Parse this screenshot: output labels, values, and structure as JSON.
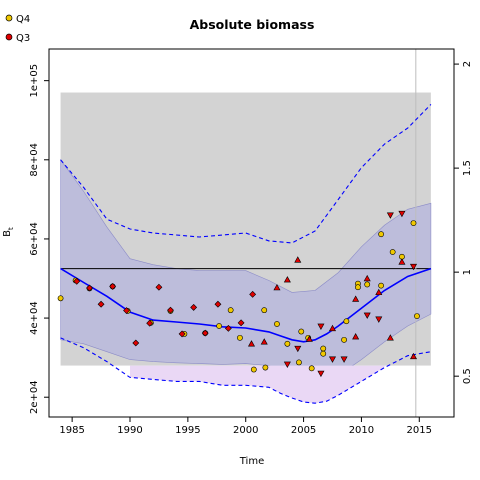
{
  "chart_data": {
    "type": "scatter",
    "title": "Absolute biomass",
    "xlabel": "Time",
    "ylabel": "B",
    "ylabel_subscript": "t",
    "xlim": [
      1983,
      2018
    ],
    "ylim": [
      15000,
      108000
    ],
    "y2lim": [
      0.3038,
      2.0725
    ],
    "x_ticks": [
      1985,
      1990,
      1995,
      2000,
      2005,
      2010,
      2015
    ],
    "y_ticks": [
      20000,
      40000,
      60000,
      80000,
      100000
    ],
    "y_tick_labels": [
      "2e+04",
      "4e+04",
      "6e+04",
      "8e+04",
      "1e+05"
    ],
    "y2_ticks": [
      0.5,
      1,
      1.5,
      2
    ],
    "y2_tick_labels": [
      "0.5",
      "1",
      "1.5",
      "2"
    ],
    "legend_placement": "top-left",
    "grid": false,
    "colors": {
      "Q4": "#f0c800",
      "Q3": "#e00000",
      "ci_band": "#b8b8dc",
      "ci_lower_band": "#ead8f5",
      "bmsy_box": "#d3d3d3",
      "line": "#0000ff"
    },
    "bmsy_line": 52500,
    "bmsy_box": {
      "x": [
        1984,
        2016
      ],
      "y": [
        28000,
        97000
      ]
    },
    "marker_legend": [
      {
        "name": "Q4",
        "color": "#f0c800"
      },
      {
        "name": "Q3",
        "color": "#e00000"
      }
    ],
    "vertical_line_x": 2014.7,
    "estimate": {
      "x": [
        1984,
        1986,
        1988,
        1990,
        1992,
        1994,
        1996,
        1998,
        2000,
        2002,
        2003,
        2004,
        2005,
        2006,
        2007,
        2008,
        2010,
        2012,
        2014,
        2016
      ],
      "y": [
        52500,
        49000,
        45500,
        41500,
        39500,
        39000,
        38500,
        37800,
        37500,
        36500,
        35500,
        34500,
        34000,
        34500,
        36000,
        38000,
        42500,
        47000,
        50500,
        52500
      ]
    },
    "ci_band": {
      "x": [
        1984,
        1986,
        1988,
        1990,
        1992,
        1994,
        1996,
        1998,
        2000,
        2002,
        2004,
        2006,
        2008,
        2010,
        2012,
        2014,
        2016
      ],
      "lower": [
        34500,
        33500,
        31500,
        29500,
        29000,
        28700,
        28500,
        28300,
        28500,
        28000,
        25500,
        24000,
        25500,
        29500,
        34000,
        38000,
        41000
      ],
      "upper": [
        80000,
        72000,
        63000,
        55000,
        53500,
        52500,
        52000,
        52000,
        52000,
        49500,
        46500,
        47000,
        51500,
        58000,
        63500,
        67500,
        69000
      ]
    },
    "ci_dashed_lower": {
      "x": [
        1984,
        1986,
        1988,
        1990,
        1992,
        1994,
        1996,
        1998,
        2000,
        2002,
        2003,
        2004,
        2005,
        2006,
        2007,
        2008,
        2010,
        2012,
        2014,
        2016
      ],
      "y": [
        35000,
        32500,
        29000,
        25000,
        24500,
        24000,
        24000,
        23000,
        23000,
        22500,
        21000,
        19800,
        18800,
        18500,
        19000,
        20500,
        24000,
        27500,
        30500,
        31500
      ]
    },
    "ci_dashed_upper": {
      "x": [
        1984,
        1986,
        1988,
        1990,
        1992,
        1994,
        1996,
        1998,
        2000,
        2002,
        2004,
        2006,
        2008,
        2010,
        2012,
        2014,
        2016
      ],
      "y": [
        80000,
        73000,
        65000,
        62500,
        61500,
        61000,
        60500,
        61000,
        61500,
        59500,
        59000,
        62000,
        70000,
        78000,
        84000,
        88000,
        94000
      ]
    },
    "series": [
      {
        "name": "Q4",
        "marker": "circle",
        "points": [
          [
            1984.0,
            45000
          ],
          [
            1985.3,
            49500
          ],
          [
            1986.5,
            47500
          ],
          [
            1988.5,
            48000
          ],
          [
            1989.8,
            41800
          ],
          [
            1991.8,
            38800
          ],
          [
            1993.5,
            41800
          ],
          [
            1994.7,
            36000
          ],
          [
            1996.5,
            36200
          ],
          [
            1997.7,
            38000
          ],
          [
            1998.7,
            42000
          ],
          [
            1999.5,
            35000
          ],
          [
            2000.7,
            27000
          ],
          [
            2001.6,
            42000
          ],
          [
            2001.7,
            27500
          ],
          [
            2002.7,
            38500
          ],
          [
            2003.6,
            33500
          ],
          [
            2004.6,
            28800
          ],
          [
            2004.8,
            36600
          ],
          [
            2005.4,
            35000
          ],
          [
            2005.7,
            27300
          ],
          [
            2006.7,
            32300
          ],
          [
            2006.7,
            31000
          ],
          [
            2008.5,
            34500
          ],
          [
            2008.7,
            39200
          ],
          [
            2009.7,
            48700
          ],
          [
            2009.7,
            47800
          ],
          [
            2010.5,
            48500
          ],
          [
            2011.7,
            48200
          ],
          [
            2011.7,
            61200
          ],
          [
            2012.7,
            56700
          ],
          [
            2013.5,
            55500
          ],
          [
            2014.5,
            64000
          ],
          [
            2014.8,
            40500
          ]
        ]
      },
      {
        "name": "Q3",
        "marker": "mixed",
        "points": [
          [
            1985.4,
            49300,
            "diamond"
          ],
          [
            1986.5,
            47600,
            "diamond"
          ],
          [
            1987.5,
            43500,
            "diamond"
          ],
          [
            1988.5,
            48000,
            "diamond"
          ],
          [
            1989.7,
            41900,
            "diamond"
          ],
          [
            1990.5,
            33700,
            "diamond"
          ],
          [
            1991.7,
            38700,
            "diamond"
          ],
          [
            1992.5,
            47800,
            "diamond"
          ],
          [
            1993.5,
            42000,
            "diamond"
          ],
          [
            1994.5,
            36000,
            "diamond"
          ],
          [
            1995.5,
            42700,
            "diamond"
          ],
          [
            1996.5,
            36200,
            "diamond"
          ],
          [
            1997.6,
            43500,
            "diamond"
          ],
          [
            1998.5,
            37400,
            "diamond"
          ],
          [
            1999.6,
            38800,
            "diamond"
          ],
          [
            2000.6,
            46000,
            "diamond"
          ],
          [
            2000.5,
            33500,
            "triangle-up"
          ],
          [
            2001.6,
            34000,
            "triangle-up"
          ],
          [
            2002.7,
            47700,
            "triangle-up"
          ],
          [
            2003.6,
            49700,
            "triangle-up"
          ],
          [
            2003.6,
            28300,
            "triangle-down"
          ],
          [
            2004.5,
            54700,
            "triangle-up"
          ],
          [
            2004.5,
            32300,
            "triangle-down"
          ],
          [
            2005.5,
            34700,
            "triangle-up"
          ],
          [
            2006.5,
            37900,
            "triangle-down"
          ],
          [
            2006.5,
            26000,
            "triangle-down"
          ],
          [
            2007.5,
            37400,
            "triangle-up"
          ],
          [
            2007.5,
            29600,
            "triangle-down"
          ],
          [
            2008.5,
            29600,
            "triangle-down"
          ],
          [
            2009.5,
            35300,
            "triangle-up"
          ],
          [
            2009.5,
            44800,
            "triangle-up"
          ],
          [
            2010.5,
            50000,
            "triangle-up"
          ],
          [
            2010.5,
            40700,
            "triangle-down"
          ],
          [
            2011.5,
            46500,
            "triangle-up"
          ],
          [
            2011.5,
            39700,
            "triangle-down"
          ],
          [
            2012.5,
            66000,
            "triangle-down"
          ],
          [
            2012.5,
            35000,
            "triangle-up"
          ],
          [
            2013.5,
            66400,
            "triangle-down"
          ],
          [
            2013.5,
            54200,
            "triangle-up"
          ],
          [
            2014.5,
            53000,
            "triangle-down"
          ],
          [
            2014.5,
            30300,
            "triangle-up"
          ]
        ]
      }
    ]
  }
}
